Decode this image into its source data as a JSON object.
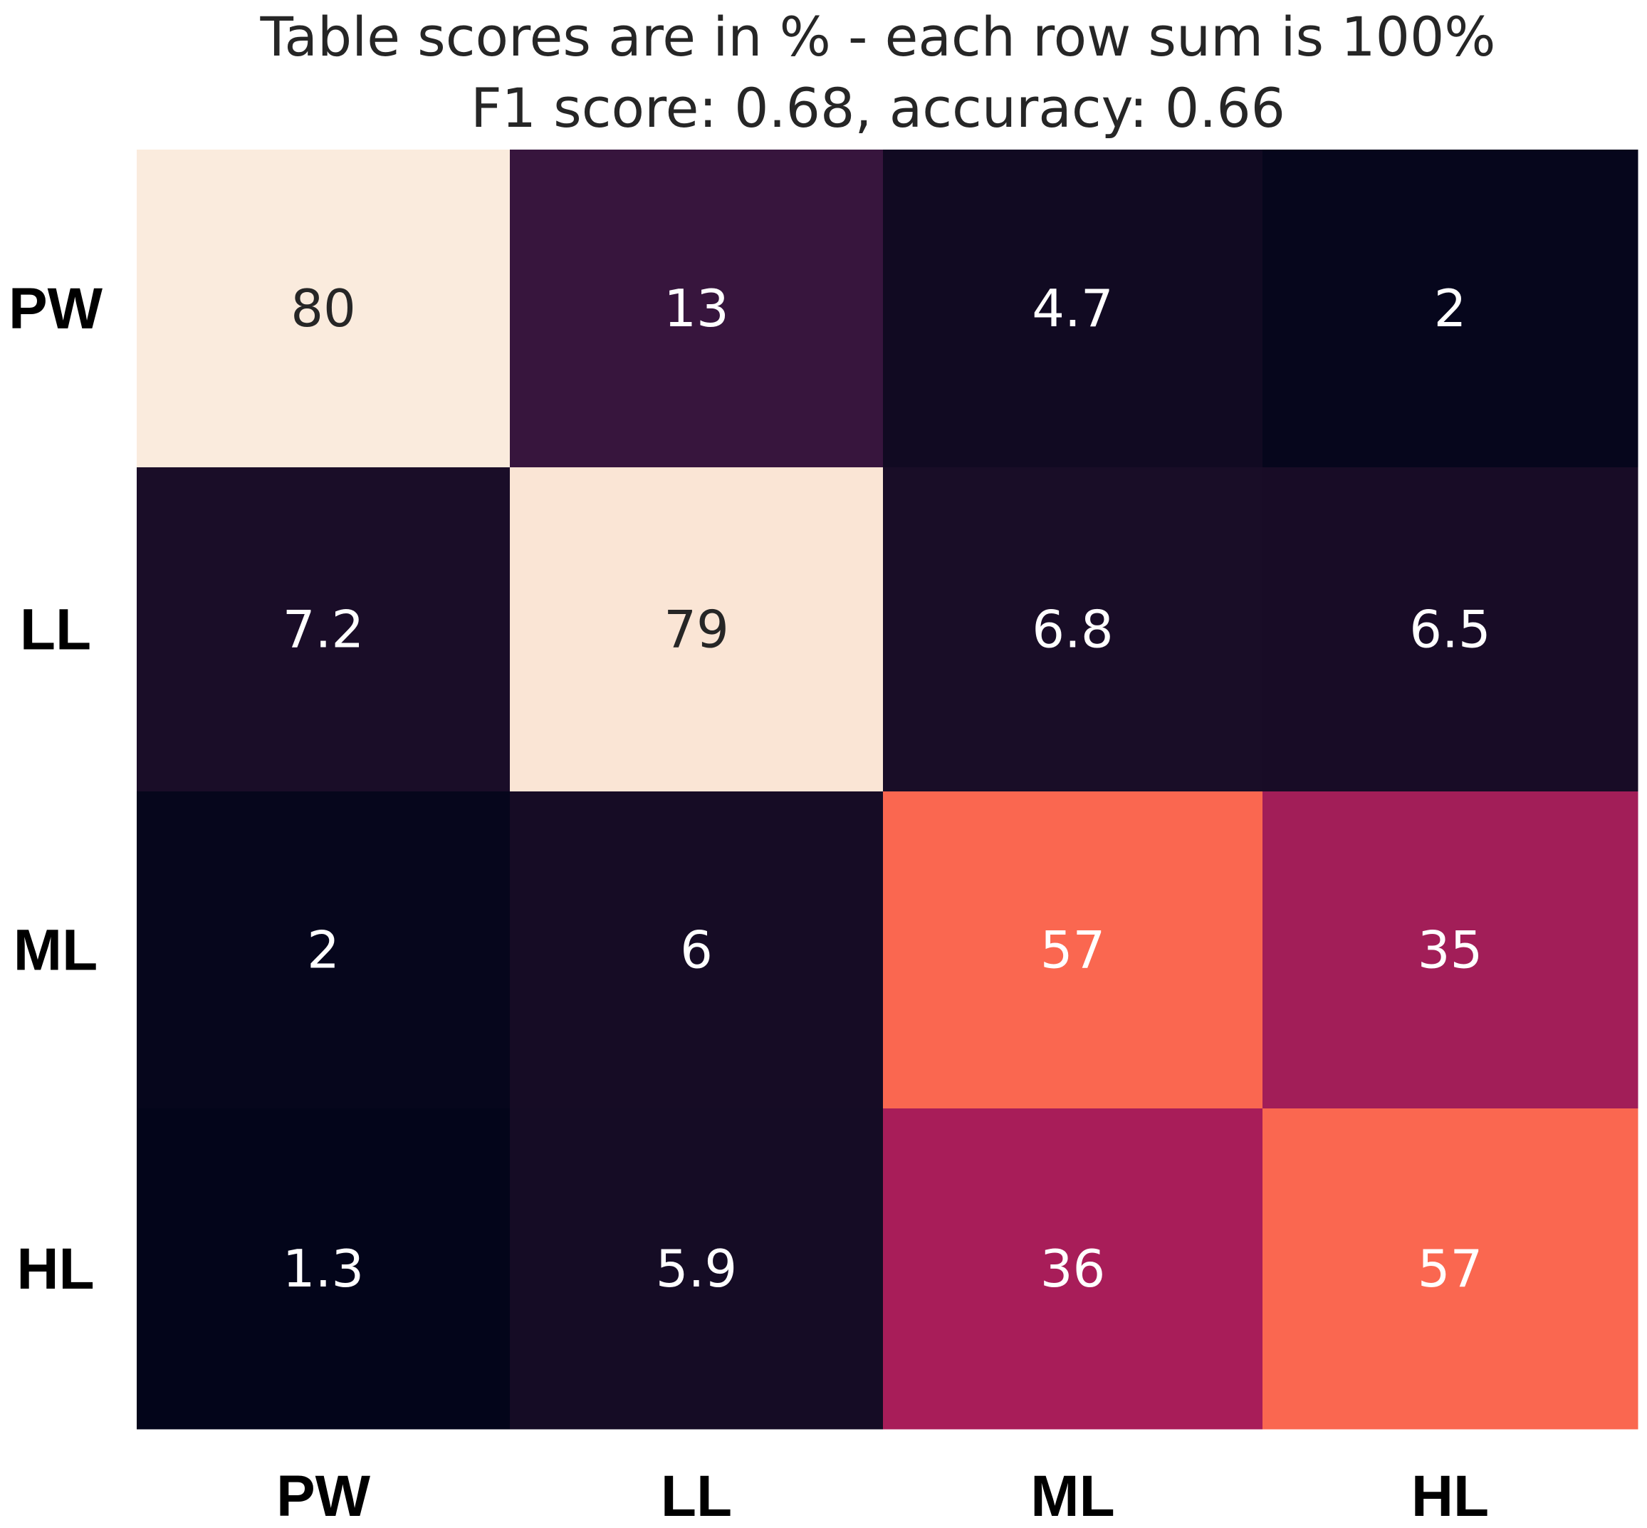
{
  "chart_data": {
    "type": "heatmap",
    "title": "Table scores are in % - each row sum is 100%",
    "subtitle": "F1 score: 0.68, accuracy: 0.66",
    "row_labels": [
      "PW",
      "LL",
      "ML",
      "HL"
    ],
    "col_labels": [
      "PW",
      "LL",
      "ML",
      "HL"
    ],
    "values": [
      [
        80,
        13,
        4.7,
        2
      ],
      [
        7.2,
        79,
        6.8,
        6.5
      ],
      [
        2,
        6,
        57,
        35
      ],
      [
        1.3,
        5.9,
        36,
        57
      ]
    ],
    "value_labels": [
      [
        "80",
        "13",
        "4.7",
        "2"
      ],
      [
        "7.2",
        "79",
        "6.8",
        "6.5"
      ],
      [
        "2",
        "6",
        "57",
        "35"
      ],
      [
        "1.3",
        "5.9",
        "36",
        "57"
      ]
    ],
    "unit": "%",
    "colormap": "rocket",
    "vmin": 1.3,
    "vmax": 80,
    "colorbar": false,
    "grid": false
  }
}
